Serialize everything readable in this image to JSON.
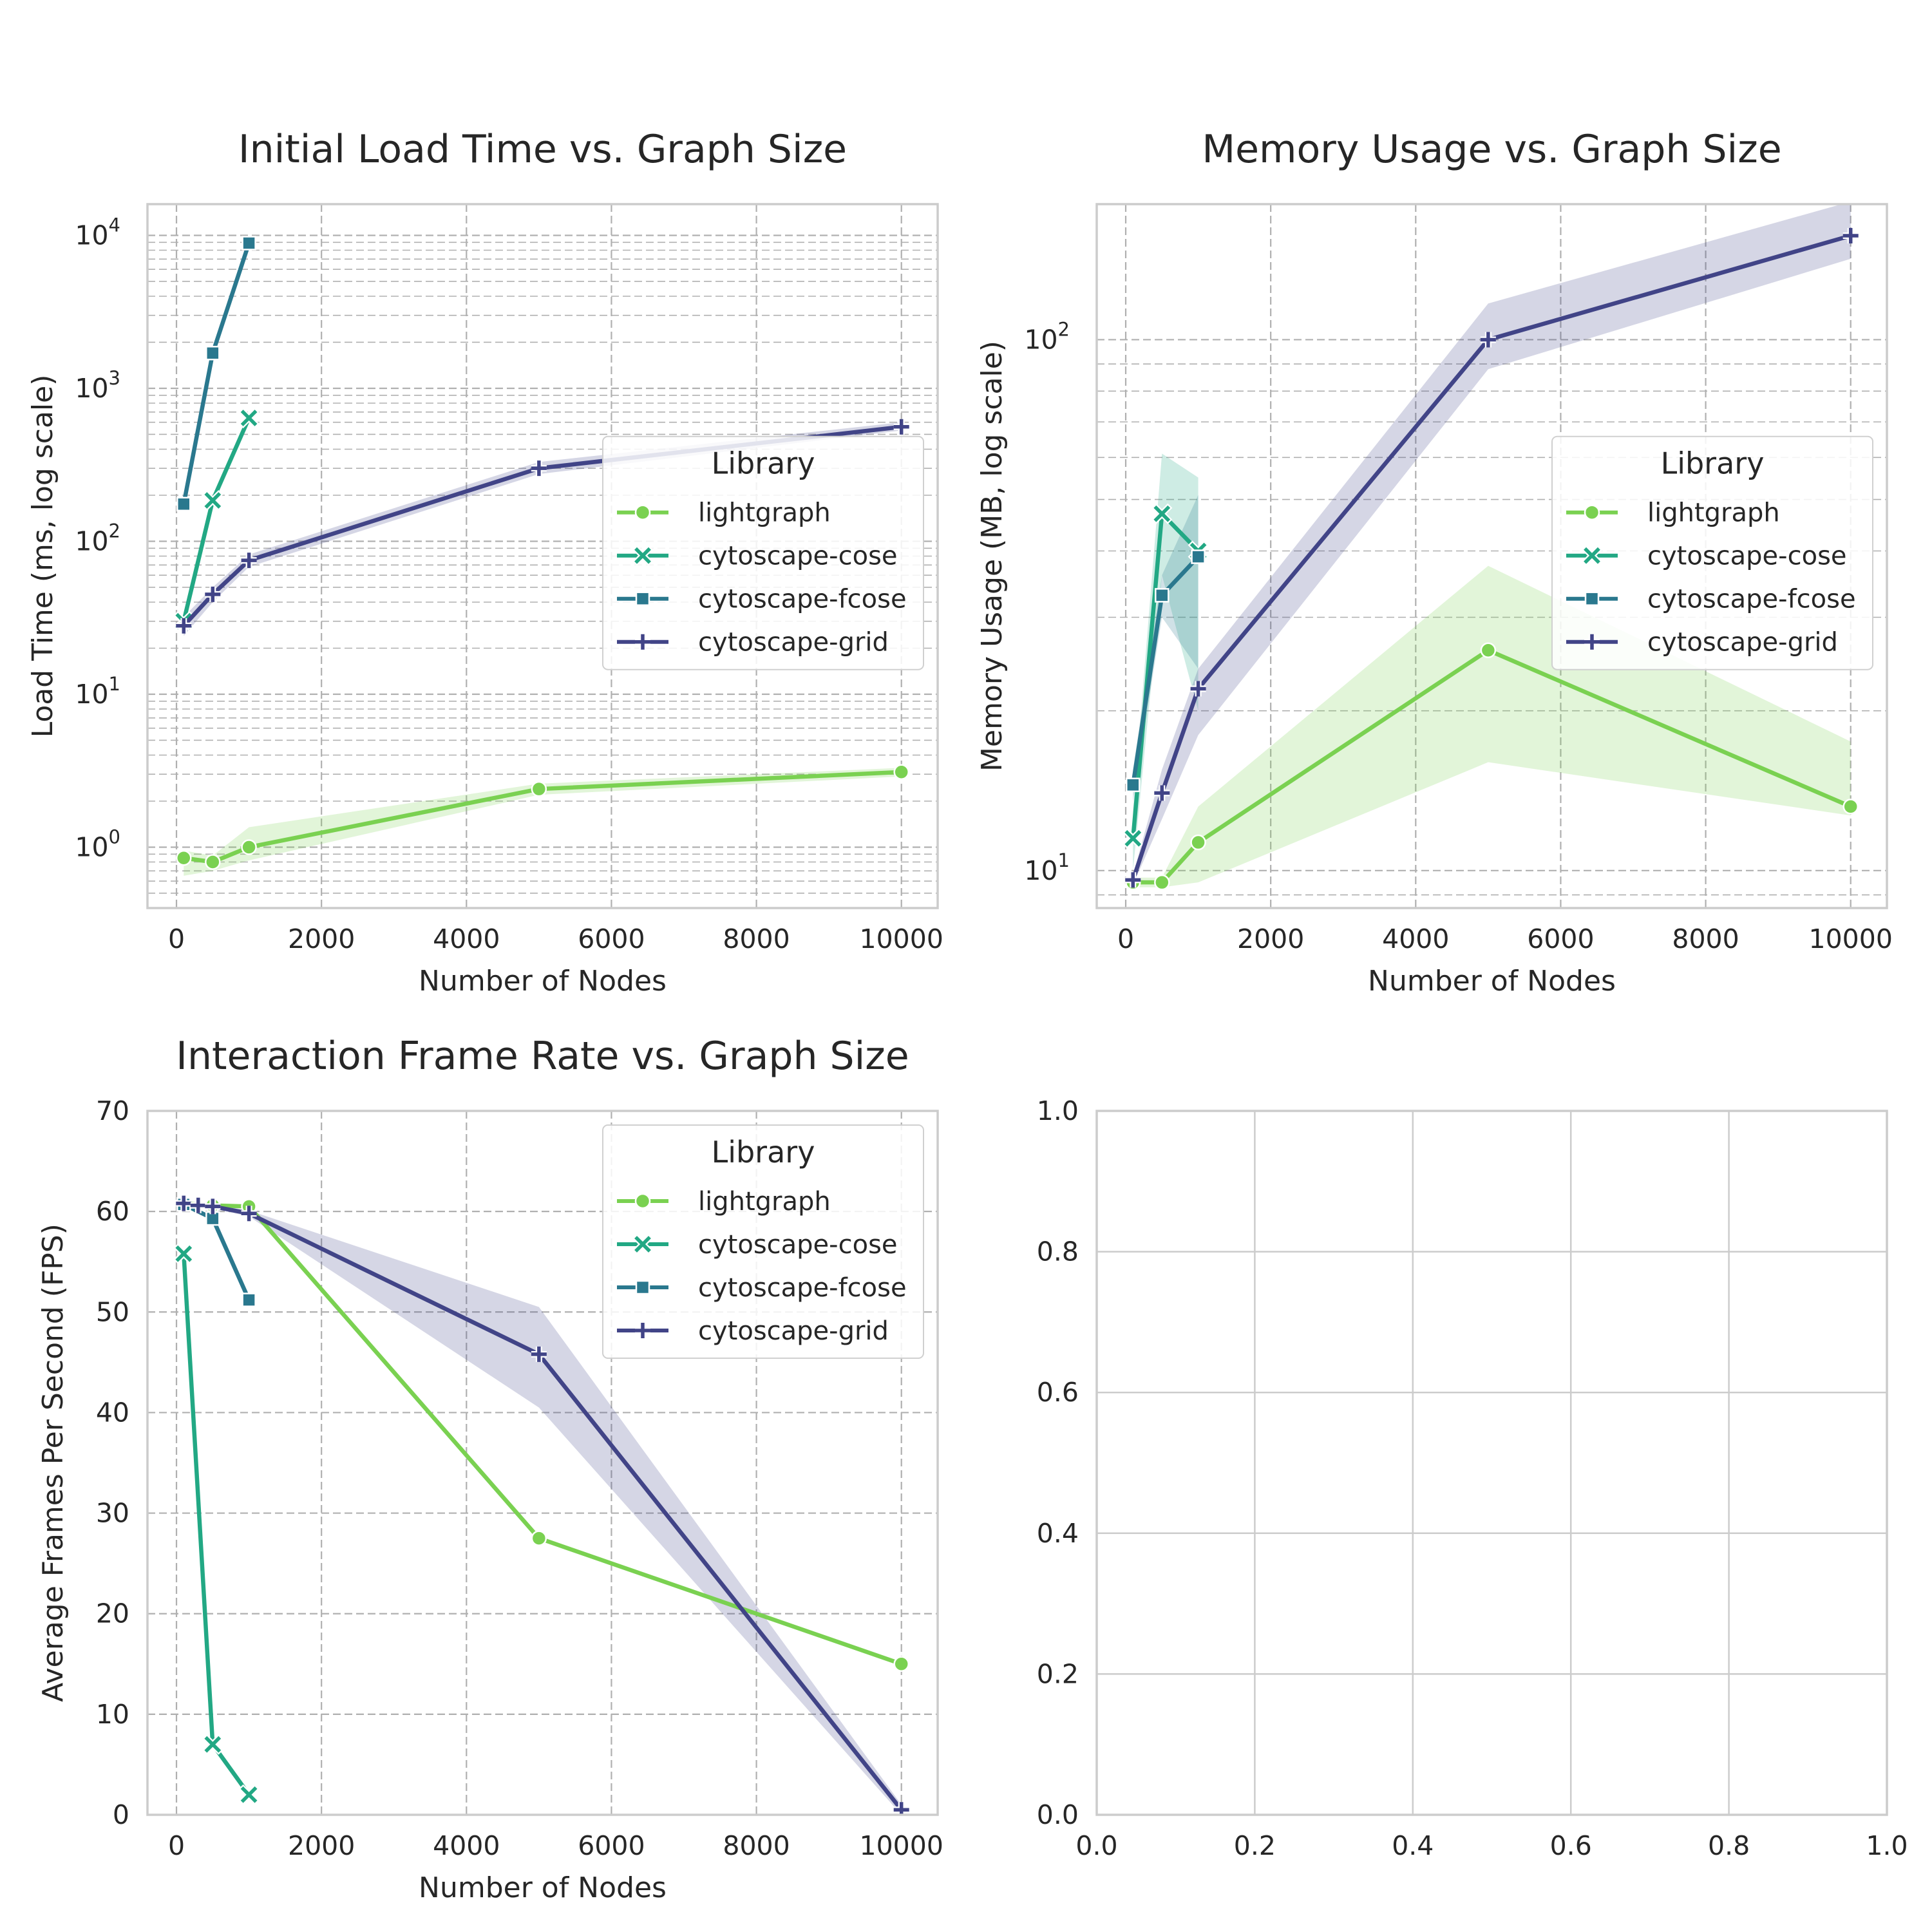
{
  "colors": {
    "lightgraph": "#7ad151",
    "cytoscape-cose": "#22a884",
    "cytoscape-fcose": "#2a788e",
    "cytoscape-grid": "#414487"
  },
  "chart_data": [
    {
      "type": "line",
      "title": "Initial Load Time vs. Graph Size",
      "xlabel": "Number of Nodes",
      "ylabel": "Load Time (ms, log scale)",
      "yscale": "log",
      "xlim": [
        -400,
        10500
      ],
      "ylim": [
        0.4,
        16000
      ],
      "xticks": [
        "0",
        "2000",
        "4000",
        "6000",
        "8000",
        "10000"
      ],
      "yticks": [
        {
          "base": "10",
          "exp": "0"
        },
        {
          "base": "10",
          "exp": "1"
        },
        {
          "base": "10",
          "exp": "2"
        },
        {
          "base": "10",
          "exp": "3"
        },
        {
          "base": "10",
          "exp": "4"
        }
      ],
      "grid": "dashed, major and minor",
      "legend": {
        "title": "Library",
        "placement": "center-right"
      },
      "series": [
        {
          "name": "lightgraph",
          "marker": "circle",
          "x": [
            100,
            500,
            1000,
            5000,
            10000
          ],
          "y": [
            0.85,
            0.8,
            1.0,
            2.4,
            3.1
          ],
          "band_low": [
            0.65,
            0.7,
            0.82,
            2.2,
            2.9
          ],
          "band_high": [
            0.95,
            0.88,
            1.35,
            2.6,
            3.3
          ]
        },
        {
          "name": "cytoscape-cose",
          "marker": "x",
          "x": [
            100,
            500,
            1000
          ],
          "y": [
            30,
            185,
            640
          ]
        },
        {
          "name": "cytoscape-fcose",
          "marker": "square",
          "x": [
            100,
            500,
            1000
          ],
          "y": [
            175,
            1700,
            8900
          ]
        },
        {
          "name": "cytoscape-grid",
          "marker": "plus",
          "x": [
            100,
            500,
            1000,
            5000,
            10000
          ],
          "y": [
            28,
            45,
            75,
            300,
            560
          ],
          "band_low": [
            24,
            40,
            68,
            275,
            530
          ],
          "band_high": [
            32,
            50,
            82,
            330,
            600
          ]
        }
      ]
    },
    {
      "type": "line",
      "title": "Memory Usage vs. Graph Size",
      "xlabel": "Number of Nodes",
      "ylabel": "Memory Usage (MB, log scale)",
      "yscale": "log",
      "xlim": [
        -400,
        10500
      ],
      "ylim": [
        8.5,
        180
      ],
      "xticks": [
        "0",
        "2000",
        "4000",
        "6000",
        "8000",
        "10000"
      ],
      "yticks": [
        {
          "base": "10",
          "exp": "1"
        },
        {
          "base": "10",
          "exp": "2"
        }
      ],
      "grid": "dashed, major and minor",
      "legend": {
        "title": "Library",
        "placement": "center-right"
      },
      "series": [
        {
          "name": "lightgraph",
          "marker": "circle",
          "x": [
            100,
            500,
            1000,
            5000,
            10000
          ],
          "y": [
            9.5,
            9.5,
            11.3,
            26.0,
            13.2
          ],
          "band_low": [
            9.3,
            9.3,
            9.5,
            16.0,
            12.7
          ],
          "band_high": [
            9.7,
            9.7,
            13.2,
            37.5,
            17.5
          ]
        },
        {
          "name": "cytoscape-cose",
          "marker": "x",
          "x": [
            100,
            500,
            1000
          ],
          "y": [
            11.5,
            47.0,
            40.0
          ],
          "band_low": [
            10.0,
            36.0,
            20.0
          ],
          "band_high": [
            13.0,
            61.0,
            55.0
          ]
        },
        {
          "name": "cytoscape-fcose",
          "marker": "square",
          "x": [
            100,
            500,
            1000
          ],
          "y": [
            14.5,
            33.0,
            39.0
          ],
          "band_low": [
            13.5,
            30.0,
            24.0
          ],
          "band_high": [
            15.5,
            36.0,
            51.0
          ]
        },
        {
          "name": "cytoscape-grid",
          "marker": "plus",
          "x": [
            100,
            500,
            1000,
            5000,
            10000
          ],
          "y": [
            9.6,
            14.0,
            22.0,
            100,
            157
          ],
          "band_low": [
            9.4,
            12.5,
            18.0,
            88,
            142
          ],
          "band_high": [
            9.8,
            15.5,
            24.0,
            117,
            182
          ]
        }
      ]
    },
    {
      "type": "line",
      "title": "Interaction Frame Rate vs. Graph Size",
      "xlabel": "Number of Nodes",
      "ylabel": "Average Frames Per Second (FPS)",
      "yscale": "linear",
      "xlim": [
        -400,
        10500
      ],
      "ylim": [
        0,
        70
      ],
      "xticks": [
        "0",
        "2000",
        "4000",
        "6000",
        "8000",
        "10000"
      ],
      "yticks": [
        "0",
        "10",
        "20",
        "30",
        "40",
        "50",
        "60",
        "70"
      ],
      "grid": "dashed",
      "legend": {
        "title": "Library",
        "placement": "upper-right"
      },
      "series": [
        {
          "name": "lightgraph",
          "marker": "circle",
          "x": [
            100,
            500,
            1000,
            5000,
            10000
          ],
          "y": [
            60.8,
            60.6,
            60.5,
            27.5,
            15.0
          ]
        },
        {
          "name": "cytoscape-cose",
          "marker": "x",
          "x": [
            100,
            500,
            1000
          ],
          "y": [
            55.8,
            7.0,
            2.0
          ]
        },
        {
          "name": "cytoscape-fcose",
          "marker": "square",
          "x": [
            100,
            500,
            1000
          ],
          "y": [
            60.7,
            59.3,
            51.2
          ]
        },
        {
          "name": "cytoscape-grid",
          "marker": "plus",
          "x": [
            100,
            300,
            500,
            1000,
            5000,
            10000
          ],
          "y": [
            60.8,
            60.6,
            60.5,
            59.8,
            45.8,
            0.5
          ],
          "band_low": [
            60.6,
            60.4,
            60.3,
            59.5,
            40.5,
            0.0
          ],
          "band_high": [
            61.0,
            60.8,
            60.7,
            60.1,
            50.5,
            1.0
          ]
        }
      ]
    },
    {
      "type": "empty",
      "xlim": [
        0,
        1
      ],
      "ylim": [
        0,
        1
      ],
      "xticks": [
        "0.0",
        "0.2",
        "0.4",
        "0.6",
        "0.8",
        "1.0"
      ],
      "yticks": [
        "0.0",
        "0.2",
        "0.4",
        "0.6",
        "0.8",
        "1.0"
      ],
      "grid": "solid"
    }
  ]
}
